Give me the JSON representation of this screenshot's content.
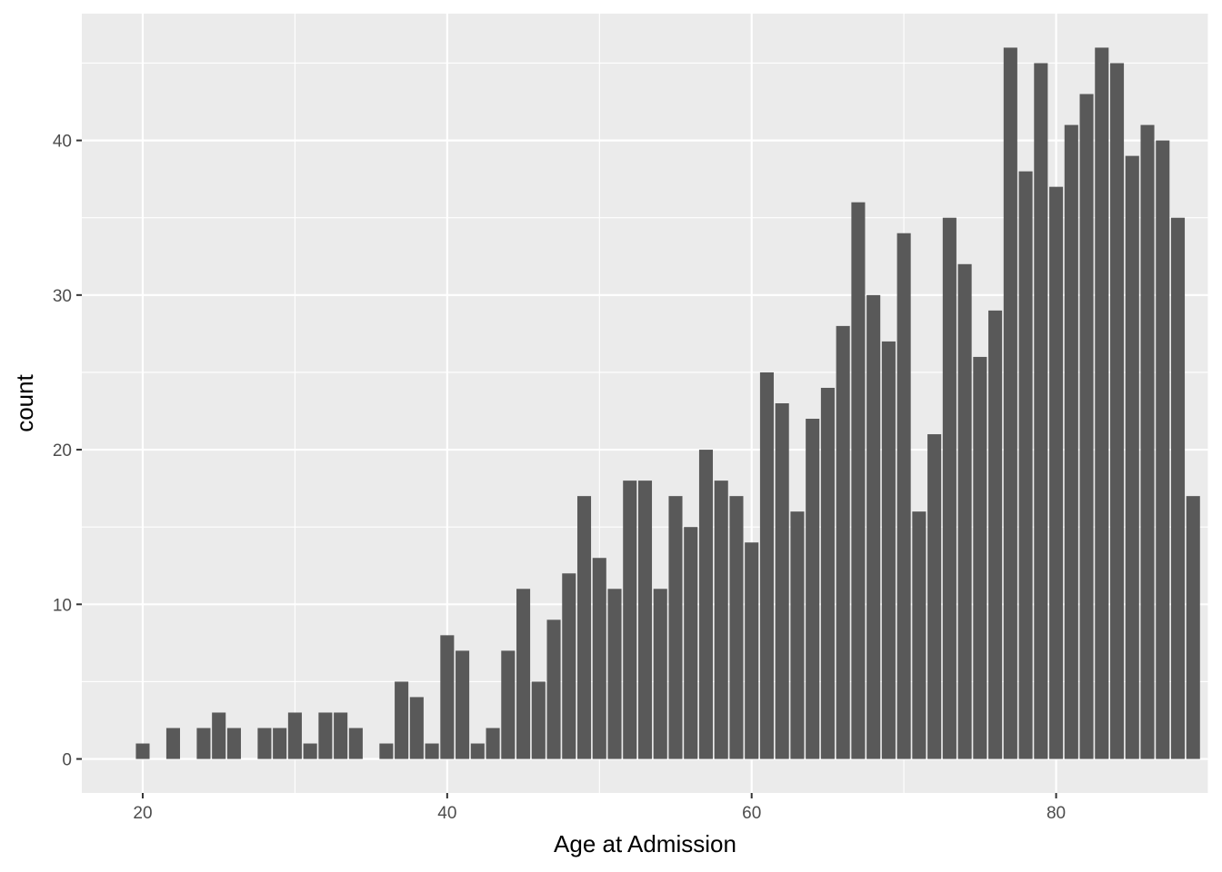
{
  "chart_data": {
    "type": "bar",
    "title": "",
    "xlabel": "Age at Admission",
    "ylabel": "count",
    "xlim": [
      16,
      90
    ],
    "ylim": [
      -2.2,
      48.2
    ],
    "x_ticks": [
      20,
      40,
      60,
      80
    ],
    "y_ticks": [
      0,
      10,
      20,
      30,
      40
    ],
    "grid": true,
    "legend": "none",
    "colors": {
      "panel": "#ebebeb",
      "grid": "#ffffff",
      "bar": "#595959"
    },
    "x": [
      20,
      22,
      24,
      25,
      26,
      28,
      29,
      30,
      31,
      32,
      33,
      34,
      36,
      37,
      38,
      39,
      40,
      41,
      42,
      43,
      44,
      45,
      46,
      47,
      48,
      49,
      50,
      51,
      52,
      53,
      54,
      55,
      56,
      57,
      58,
      59,
      60,
      61,
      62,
      63,
      64,
      65,
      66,
      67,
      68,
      69,
      70,
      71,
      72,
      73,
      74,
      75,
      76,
      77,
      78,
      79,
      80,
      81,
      82,
      83,
      84,
      85,
      86,
      87,
      88,
      89
    ],
    "values": [
      1,
      2,
      2,
      3,
      2,
      2,
      2,
      3,
      1,
      3,
      3,
      2,
      1,
      5,
      4,
      1,
      8,
      7,
      1,
      2,
      7,
      11,
      5,
      9,
      12,
      17,
      13,
      11,
      18,
      18,
      11,
      17,
      15,
      20,
      18,
      17,
      14,
      25,
      23,
      16,
      22,
      24,
      28,
      36,
      30,
      27,
      34,
      16,
      21,
      35,
      32,
      26,
      29,
      46,
      38,
      45,
      37,
      41,
      43,
      46,
      45,
      39,
      41,
      40,
      35,
      17
    ]
  }
}
